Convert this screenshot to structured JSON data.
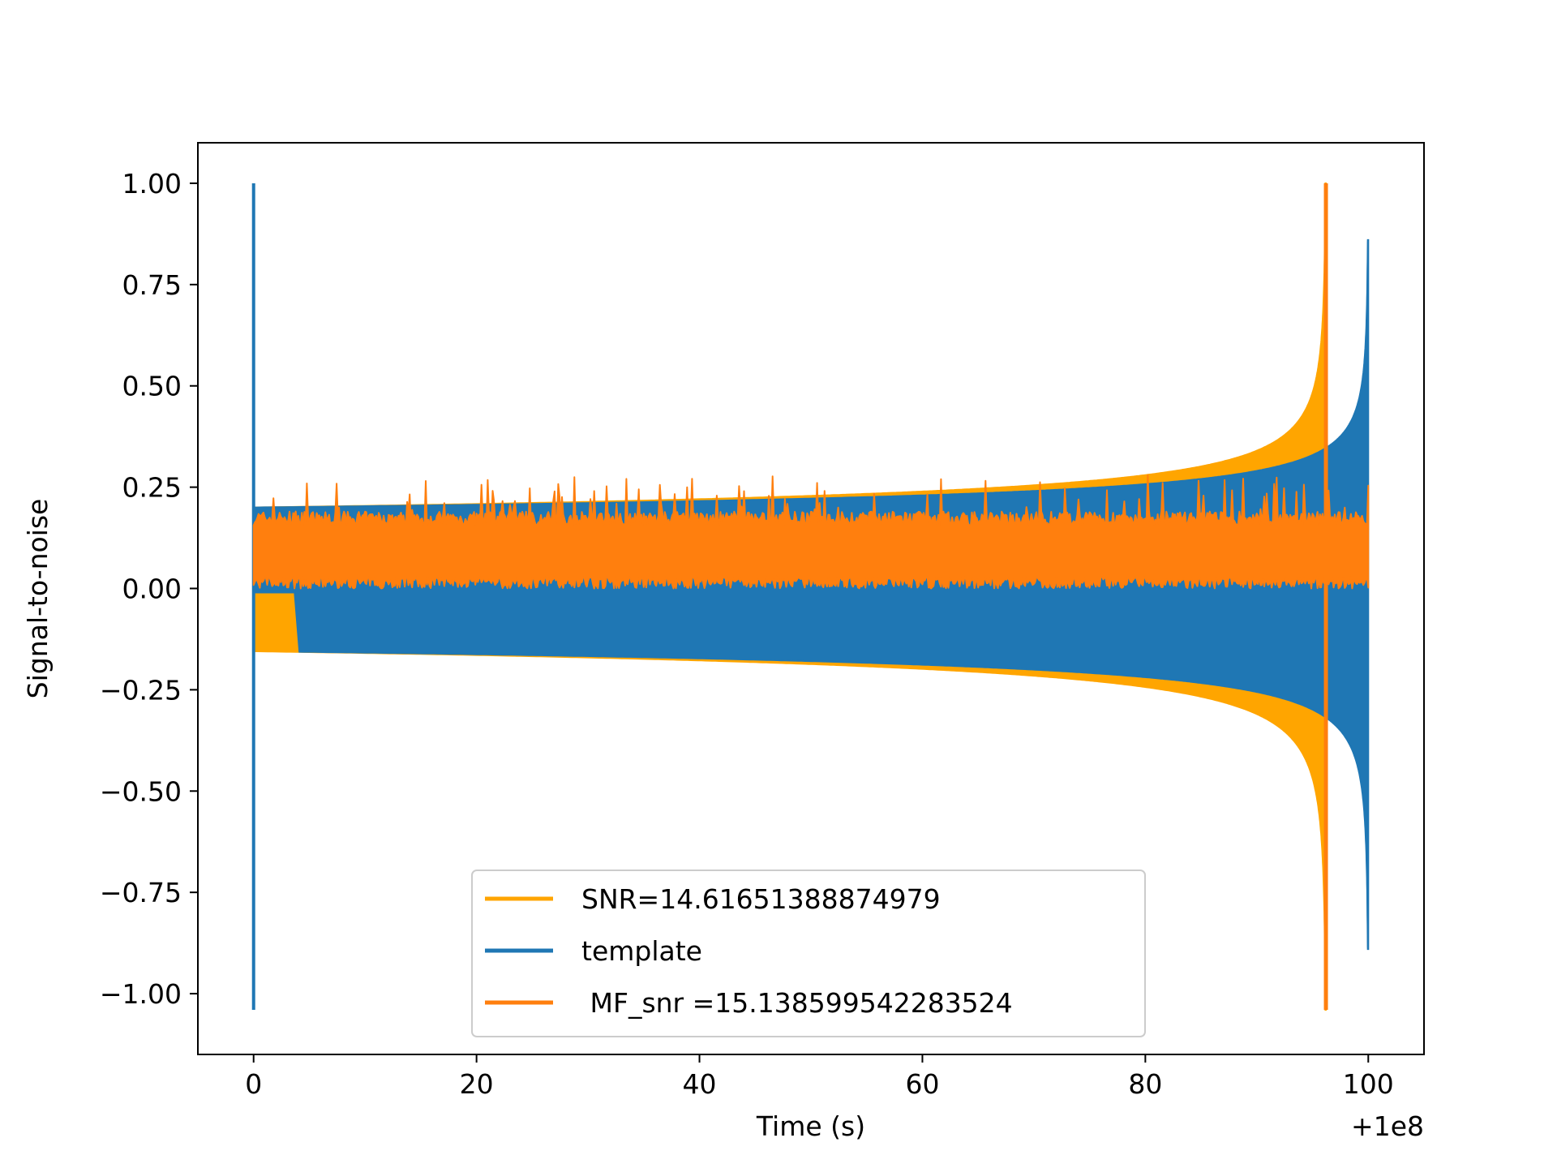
{
  "chart_data": {
    "type": "line",
    "title": "",
    "xlabel": "Time (s)",
    "ylabel": "Signal-to-noise",
    "x_offset_label": "+1e8",
    "xlim": [
      -5,
      105
    ],
    "ylim": [
      -1.15,
      1.1
    ],
    "x_ticks": [
      0,
      20,
      40,
      60,
      80,
      100
    ],
    "x_tick_labels": [
      "0",
      "20",
      "40",
      "60",
      "80",
      "100"
    ],
    "y_ticks": [
      1.0,
      0.75,
      0.5,
      0.25,
      0.0,
      -0.25,
      -0.5,
      -0.75,
      -1.0
    ],
    "y_tick_labels": [
      "1.00",
      "0.75",
      "0.50",
      "0.25",
      "0.00",
      "−0.25",
      "−0.50",
      "−0.75",
      "−1.00"
    ],
    "grid": false,
    "legend_position": "bottom-center",
    "series": [
      {
        "name": "SNR=14.61651388874979",
        "color": "#ffa500",
        "x_range": [
          0,
          96.2
        ],
        "envelope_peak_x": 96.2,
        "upper_min": 0.2,
        "upper_max": 1.0,
        "lower_min": -0.155,
        "lower_max": -1.04,
        "initial_segment": {
          "x_start": 0.4,
          "x_end": 3.7,
          "y_top": -0.01,
          "y_bottom": -0.155
        }
      },
      {
        "name": "template",
        "color": "#1f77b4",
        "x_range": [
          0,
          100
        ],
        "envelope_peak_x": 100,
        "upper_min": 0.2,
        "upper_max": 0.86,
        "lower_min": -0.155,
        "lower_max": -0.89,
        "initial_spike": {
          "x": 0,
          "y_top": 1.0,
          "y_bottom": -1.04
        }
      },
      {
        "name": " MF_snr =15.138599542283524",
        "color": "#ff7f0e",
        "x_range": [
          0,
          100
        ],
        "baseline_low": 0.0,
        "baseline_high": 0.19,
        "noise_peak_max": 0.28,
        "peak": {
          "x": 96.2,
          "y_top": 1.0,
          "y_bottom": -1.04
        }
      }
    ]
  }
}
